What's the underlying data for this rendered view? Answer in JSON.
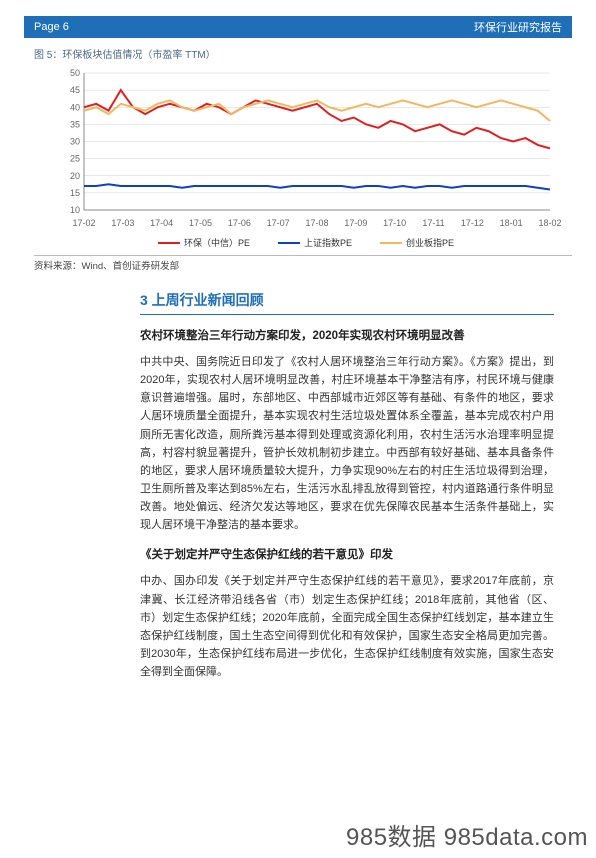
{
  "header": {
    "page_label": "Page 6",
    "report_title": "环保行业研究报告",
    "bar_bg": "#1e6fb8",
    "bar_fg": "#ffffff"
  },
  "figure": {
    "caption": "图 5：环保板块估值情况（市盈率 TTM）",
    "source": "资料来源：Wind、首创证券研发部",
    "chart": {
      "type": "line",
      "background_color": "#ffffff",
      "grid_color": "#d0d0d0",
      "axis_color": "#888888",
      "axis_fontsize": 9,
      "ylim": [
        10,
        50
      ],
      "ytick_step": 5,
      "yticks": [
        10,
        15,
        20,
        25,
        30,
        35,
        40,
        45,
        50
      ],
      "x_categories": [
        "17-02",
        "17-03",
        "17-04",
        "17-05",
        "17-06",
        "17-07",
        "17-08",
        "17-09",
        "17-10",
        "17-11",
        "17-12",
        "18-01",
        "18-02"
      ],
      "line_width": 2,
      "series": [
        {
          "name": "环保（中信）PE",
          "color": "#e02020",
          "values": [
            40,
            41,
            39,
            45,
            40,
            38,
            40,
            41,
            40,
            39,
            41,
            40,
            38,
            40,
            42,
            41,
            40,
            39,
            40,
            41,
            38,
            36,
            37,
            35,
            34,
            36,
            35,
            33,
            34,
            35,
            33,
            32,
            34,
            33,
            31,
            30,
            31,
            29,
            28
          ]
        },
        {
          "name": "上证指数PE",
          "color": "#1040c0",
          "values": [
            17,
            17,
            17.5,
            17,
            17,
            17,
            17,
            17,
            16.5,
            17,
            17,
            17,
            17,
            17,
            17,
            17,
            16.5,
            17,
            17,
            17,
            17,
            17,
            16.5,
            17,
            17,
            16.5,
            17,
            16.5,
            17,
            17,
            16.5,
            17,
            17,
            17,
            17,
            17,
            17,
            16.5,
            16
          ]
        },
        {
          "name": "创业板指PE",
          "color": "#f0b860",
          "values": [
            39,
            40,
            38,
            41,
            40,
            39,
            41,
            42,
            40,
            39,
            40,
            41,
            38,
            40,
            41,
            42,
            41,
            40,
            41,
            42,
            40,
            39,
            40,
            41,
            40,
            41,
            42,
            41,
            40,
            41,
            42,
            41,
            40,
            41,
            42,
            41,
            40,
            39,
            36
          ]
        }
      ],
      "legend_position": "bottom"
    }
  },
  "section": {
    "heading": "3  上周行业新闻回顾",
    "sub1_title": "农村环境整治三年行动方案印发，2020年实现农村环境明显改善",
    "para1": "中共中央、国务院近日印发了《农村人居环境整治三年行动方案》。《方案》提出，到2020年，实现农村人居环境明显改善，村庄环境基本干净整洁有序，村民环境与健康意识普遍增强。届时，东部地区、中西部城市近郊区等有基础、有条件的地区，要求人居环境质量全面提升，基本实现农村生活垃圾处置体系全覆盖，基本完成农村户用厕所无害化改造，厕所粪污基本得到处理或资源化利用，农村生活污水治理率明显提高，村容村貌显著提升，管护长效机制初步建立。中西部有较好基础、基本具备条件的地区，要求人居环境质量较大提升，力争实现90%左右的村庄生活垃圾得到治理，卫生厕所普及率达到85%左右，生活污水乱排乱放得到管控，村内道路通行条件明显改善。地处偏远、经济欠发达等地区，要求在优先保障农民基本生活条件基础上，实现人居环境干净整洁的基本要求。",
    "sub2_title": "《关于划定并严守生态保护红线的若干意见》印发",
    "para2": "中办、国办印发《关于划定并严守生态保护红线的若干意见》，要求2017年底前，京津冀、长江经济带沿线各省（市）划定生态保护红线；2018年底前，其他省（区、市）划定生态保护红线；2020年底前，全面完成全国生态保护红线划定，基本建立生态保护红线制度，国土生态空间得到优化和有效保护，国家生态安全格局更加完善。到2030年，生态保护红线布局进一步优化，生态保护红线制度有效实施，国家生态安全得到全面保障。"
  },
  "watermark": "985数据 985data.com"
}
